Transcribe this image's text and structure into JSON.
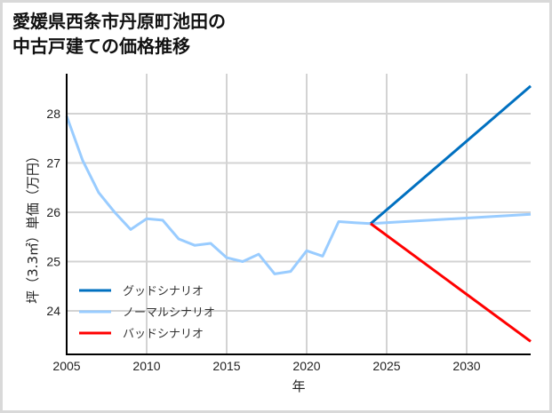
{
  "chart_data": {
    "type": "line",
    "title": "愛媛県西条市丹原町池田の\n中古戸建ての価格推移",
    "title_lines": [
      "愛媛県西条市丹原町池田の",
      "中古戸建ての価格推移"
    ],
    "xlabel": "年",
    "ylabel": "坪（3.3㎡）単価（万円）",
    "xlim": [
      2005,
      2034
    ],
    "ylim": [
      23.2,
      28.8
    ],
    "x_ticks": [
      2005,
      2010,
      2015,
      2020,
      2025,
      2030
    ],
    "y_ticks": [
      24,
      25,
      26,
      27,
      28
    ],
    "grid": true,
    "legend_position": "lower left",
    "series": [
      {
        "name": "グッドシナリオ",
        "color": "#0070c0",
        "x": [
          2024,
          2034
        ],
        "values": [
          25.77,
          28.56
        ]
      },
      {
        "name": "ノーマルシナリオ",
        "color": "#99ccff",
        "x": [
          2005,
          2006,
          2007,
          2008,
          2009,
          2010,
          2011,
          2012,
          2013,
          2014,
          2015,
          2016,
          2017,
          2018,
          2019,
          2020,
          2021,
          2022,
          2023,
          2024,
          2034
        ],
        "values": [
          27.95,
          27.05,
          26.4,
          26.0,
          25.65,
          25.87,
          25.84,
          25.46,
          25.33,
          25.37,
          25.08,
          25.0,
          25.15,
          24.75,
          24.8,
          25.22,
          25.11,
          25.81,
          25.79,
          25.77,
          25.96
        ]
      },
      {
        "name": "バッドシナリオ",
        "color": "#ff0000",
        "x": [
          2024,
          2034
        ],
        "values": [
          25.77,
          23.38
        ]
      }
    ]
  }
}
